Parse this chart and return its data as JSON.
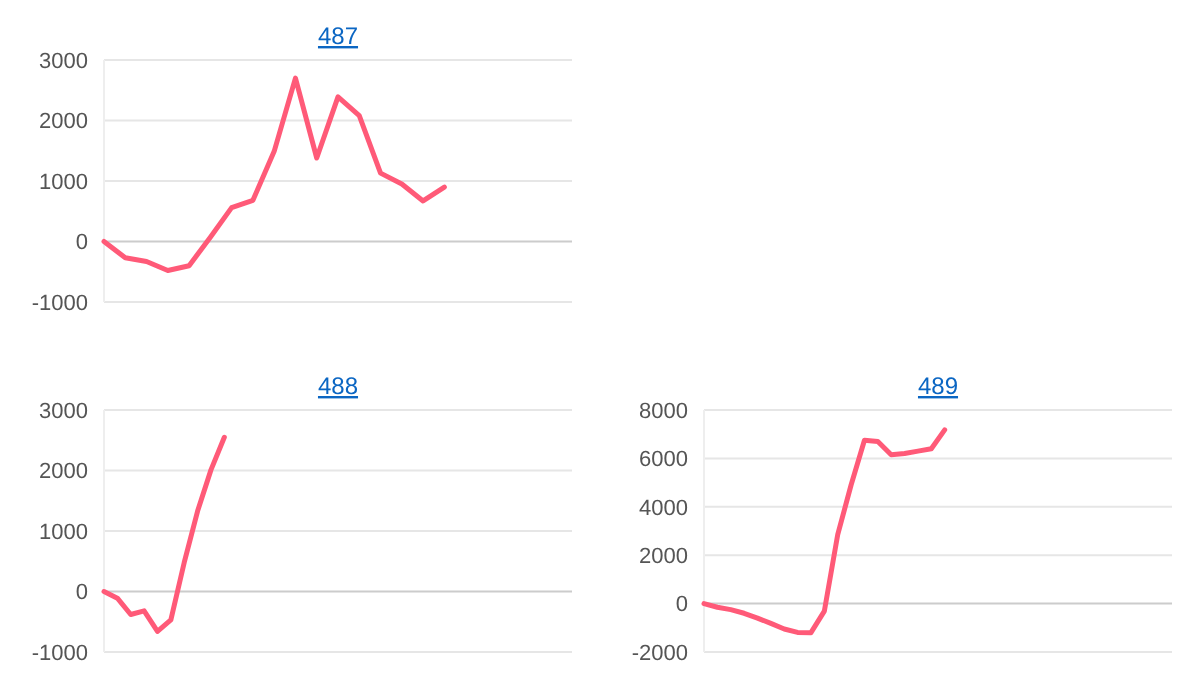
{
  "chart_data": [
    {
      "type": "line",
      "title": "487",
      "categories": [
        null,
        null,
        null,
        null,
        null,
        null,
        null,
        null,
        null,
        null,
        null,
        null,
        null,
        null,
        null,
        null,
        null,
        null,
        null,
        null,
        null,
        null,
        null
      ],
      "series": [
        {
          "color": "#ff5a78",
          "values": [
            0,
            -270,
            -330,
            -480,
            -400,
            70,
            560,
            680,
            1490,
            2700,
            1380,
            2390,
            2080,
            1130,
            950,
            670,
            900,
            null,
            null,
            null,
            null,
            null,
            null
          ]
        }
      ],
      "ylim": [
        -1000,
        3000
      ],
      "yticks": [
        -1000,
        0,
        1000,
        2000,
        3000
      ],
      "grid": "y",
      "marker": "none"
    },
    {
      "type": "line",
      "title": "488",
      "categories": [
        null,
        null,
        null,
        null,
        null,
        null,
        null,
        null,
        null,
        null,
        null,
        null,
        null,
        null,
        null,
        null,
        null,
        null,
        null,
        null,
        null,
        null,
        null,
        null,
        null,
        null,
        null,
        null,
        null,
        null,
        null,
        null,
        null,
        null,
        null,
        null
      ],
      "series": [
        {
          "color": "#ff5a78",
          "values": [
            0,
            -110,
            -380,
            -320,
            -660,
            -470,
            480,
            1330,
            2010,
            2550,
            null,
            null,
            null,
            null,
            null,
            null,
            null,
            null,
            null,
            null,
            null,
            null,
            null,
            null,
            null,
            null,
            null,
            null,
            null,
            null,
            null,
            null,
            null,
            null,
            null,
            null
          ]
        }
      ],
      "ylim": [
        -1000,
        3000
      ],
      "yticks": [
        -1000,
        0,
        1000,
        2000,
        3000
      ],
      "grid": "y",
      "marker": "none"
    },
    {
      "type": "line",
      "title": "489",
      "categories": [
        null,
        null,
        null,
        null,
        null,
        null,
        null,
        null,
        null,
        null,
        null,
        null,
        null,
        null,
        null,
        null,
        null,
        null,
        null,
        null,
        null,
        null,
        null,
        null,
        null,
        null,
        null,
        null,
        null,
        null,
        null,
        null,
        null,
        null,
        null,
        null
      ],
      "series": [
        {
          "color": "#ff5a78",
          "values": [
            0,
            -150,
            -250,
            -400,
            -600,
            -820,
            -1050,
            -1190,
            -1200,
            -310,
            2850,
            4900,
            6750,
            6700,
            6150,
            6200,
            6300,
            6400,
            7180,
            null,
            null,
            null,
            null,
            null,
            null,
            null,
            null,
            null,
            null,
            null,
            null,
            null,
            null,
            null,
            null,
            null
          ]
        }
      ],
      "ylim": [
        -2000,
        8000
      ],
      "yticks": [
        -2000,
        0,
        2000,
        4000,
        6000,
        8000
      ],
      "grid": "y",
      "marker": "none"
    }
  ]
}
